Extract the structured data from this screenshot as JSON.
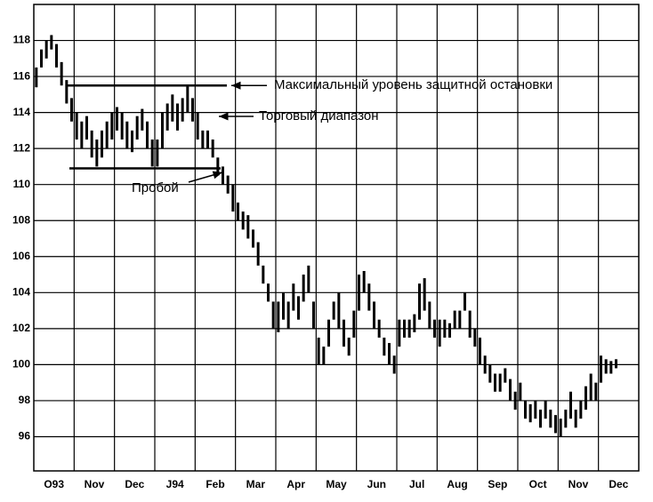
{
  "chart_data": {
    "type": "hilo",
    "color": "#000000",
    "categories": [
      "O93",
      "Nov",
      "Dec",
      "J94",
      "Feb",
      "Mar",
      "Apr",
      "May",
      "Jun",
      "Jul",
      "Aug",
      "Sep",
      "Oct",
      "Nov",
      "Dec"
    ],
    "low": [
      [
        115.4,
        116.5,
        117,
        117.5,
        116.5,
        115.5,
        114.5,
        113.5
      ],
      [
        112.5,
        112,
        112.5,
        111.5,
        111,
        111.5,
        112,
        112.5
      ],
      [
        113,
        112.5,
        112,
        111.8,
        112.5,
        113,
        112,
        111
      ],
      [
        111,
        112,
        113,
        113.5,
        113,
        113.5,
        114,
        113.5
      ],
      [
        112.5,
        112,
        112,
        111.5,
        110.5,
        110,
        109.5,
        108.5
      ],
      [
        108,
        107.5,
        107,
        106.5,
        105.5,
        104.5,
        103.5,
        102
      ],
      [
        101.8,
        102.5,
        102,
        103,
        102.5,
        103.5,
        104,
        102
      ],
      [
        100,
        100,
        101,
        102.5,
        102,
        101,
        100.5,
        101.5
      ],
      [
        103,
        104,
        103,
        102,
        101.5,
        100.5,
        100,
        99.5
      ],
      [
        101,
        101.5,
        101.5,
        101.8,
        102.5,
        103,
        102,
        101.5
      ],
      [
        101,
        101.5,
        101.5,
        102,
        102,
        103,
        101.5,
        101
      ],
      [
        100,
        99.5,
        99,
        98.5,
        98.5,
        99,
        98,
        97.5
      ],
      [
        98,
        97,
        96.8,
        97,
        96.5,
        97,
        96.5,
        96.2
      ],
      [
        96,
        96.5,
        97,
        96.5,
        97,
        97.5,
        98,
        98
      ],
      [
        99,
        99.5,
        99.5,
        99.8
      ]
    ],
    "high": [
      [
        116.5,
        117.5,
        118,
        118.3,
        117.8,
        116.8,
        115.8,
        114.8
      ],
      [
        114,
        113.5,
        113.8,
        113,
        112.5,
        113,
        113.5,
        114
      ],
      [
        114.3,
        114,
        113.5,
        113,
        113.8,
        114.2,
        113.5,
        112.5
      ],
      [
        112.5,
        114,
        114.5,
        115,
        114.5,
        114.8,
        115.5,
        114.8
      ],
      [
        114,
        113,
        113,
        112.5,
        111.5,
        111,
        110.5,
        110
      ],
      [
        109,
        108.5,
        108.3,
        107.5,
        106.8,
        105.5,
        104.5,
        103.5
      ],
      [
        103.5,
        104,
        103.5,
        104.5,
        103.8,
        105,
        105.5,
        103.5
      ],
      [
        101.5,
        101,
        102.5,
        103.5,
        104,
        102.5,
        101.5,
        103
      ],
      [
        105,
        105.2,
        104.5,
        103.5,
        102.5,
        101.5,
        101.2,
        100.5
      ],
      [
        102.5,
        102.5,
        102.5,
        102.8,
        104.5,
        104.8,
        103.5,
        102.5
      ],
      [
        102.5,
        102.5,
        102.3,
        103,
        103,
        104,
        103,
        102
      ],
      [
        101.5,
        100.5,
        100,
        99.5,
        99.5,
        99.8,
        99.2,
        98.5
      ],
      [
        99,
        98,
        97.8,
        98,
        97.5,
        98,
        97.5,
        97.2
      ],
      [
        97,
        97.5,
        98.5,
        97.5,
        98,
        98.8,
        99.5,
        99
      ],
      [
        100.5,
        100.3,
        100.2,
        100.3
      ]
    ],
    "ylim": [
      94.1,
      120
    ],
    "yticks": [
      96,
      98,
      100,
      102,
      104,
      106,
      108,
      110,
      112,
      114,
      116,
      118
    ],
    "grid": true,
    "levels": [
      115.5,
      110.9
    ],
    "annotations": [
      "Максимальный уровень защитной остановки",
      "Торговый диапазон",
      "Пробой"
    ]
  }
}
